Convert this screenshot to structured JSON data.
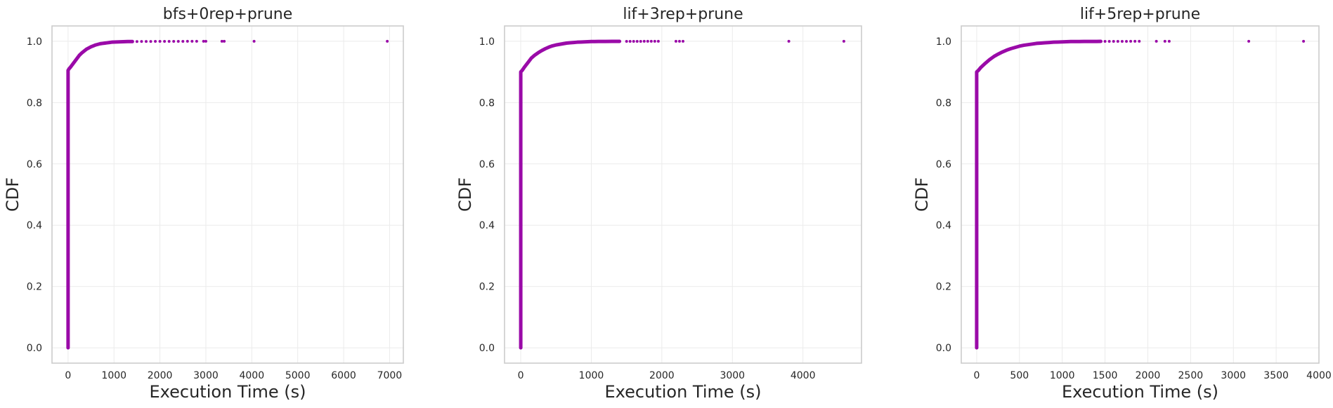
{
  "figure": {
    "accent_color": "#9a0aa8"
  },
  "chart_data": [
    {
      "type": "scatter",
      "title": "bfs+0rep+prune",
      "xlabel": "Execution Time (s)",
      "ylabel": "CDF",
      "xlim": [
        -350,
        7300
      ],
      "ylim": [
        -0.05,
        1.05
      ],
      "xticks": [
        0,
        1000,
        2000,
        3000,
        4000,
        5000,
        6000,
        7000
      ],
      "yticks": [
        0.0,
        0.2,
        0.4,
        0.6,
        0.8,
        1.0
      ],
      "grid": true,
      "series": [
        {
          "color": "#9a0aa8",
          "x": [
            0,
            0,
            0,
            0,
            0,
            0,
            0,
            0,
            0,
            0,
            0,
            0,
            0,
            0,
            0,
            0,
            0,
            0,
            0,
            0,
            0,
            20,
            50,
            100,
            150,
            200,
            250,
            300,
            350,
            400,
            450,
            500,
            550,
            600,
            650,
            700,
            750,
            800,
            850,
            900,
            950,
            1000,
            1100,
            1200,
            1300,
            1400,
            1500,
            1600,
            1700,
            1800,
            1900,
            2000,
            2100,
            2200,
            2300,
            2400,
            2500,
            2600,
            2700,
            2800,
            2950,
            3000,
            3350,
            3400,
            4050,
            6950
          ],
          "y": [
            0.0,
            0.05,
            0.1,
            0.15,
            0.2,
            0.25,
            0.3,
            0.35,
            0.4,
            0.45,
            0.5,
            0.55,
            0.6,
            0.65,
            0.7,
            0.75,
            0.8,
            0.85,
            0.88,
            0.9,
            0.905,
            0.91,
            0.915,
            0.925,
            0.935,
            0.945,
            0.955,
            0.962,
            0.968,
            0.974,
            0.978,
            0.982,
            0.985,
            0.988,
            0.99,
            0.992,
            0.993,
            0.994,
            0.995,
            0.996,
            0.997,
            0.9975,
            0.998,
            0.9985,
            0.999,
            0.999,
            0.999,
            0.9993,
            0.9994,
            0.9995,
            0.9996,
            0.9996,
            0.9997,
            0.9997,
            0.9998,
            0.9998,
            0.9998,
            0.9999,
            0.9999,
            0.9999,
            0.9999,
            0.9999,
            0.99995,
            0.99995,
            0.99998,
            1.0
          ]
        }
      ]
    },
    {
      "type": "scatter",
      "title": "lif+3rep+prune",
      "xlabel": "Execution Time (s)",
      "ylabel": "CDF",
      "xlim": [
        -230,
        4830
      ],
      "ylim": [
        -0.05,
        1.05
      ],
      "xticks": [
        0,
        1000,
        2000,
        3000,
        4000
      ],
      "yticks": [
        0.0,
        0.2,
        0.4,
        0.6,
        0.8,
        1.0
      ],
      "grid": true,
      "series": [
        {
          "color": "#9a0aa8",
          "x": [
            0,
            0,
            0,
            0,
            0,
            0,
            0,
            0,
            0,
            0,
            0,
            0,
            0,
            0,
            0,
            0,
            0,
            0,
            0,
            0,
            20,
            50,
            100,
            150,
            200,
            250,
            300,
            350,
            400,
            450,
            500,
            550,
            600,
            650,
            700,
            750,
            800,
            850,
            900,
            950,
            1000,
            1050,
            1100,
            1150,
            1200,
            1300,
            1400,
            1500,
            1550,
            1600,
            1650,
            1700,
            1750,
            1800,
            1850,
            1900,
            1950,
            2200,
            2250,
            2300,
            3800,
            4580
          ],
          "y": [
            0.0,
            0.05,
            0.1,
            0.15,
            0.2,
            0.25,
            0.3,
            0.35,
            0.4,
            0.45,
            0.5,
            0.55,
            0.6,
            0.65,
            0.7,
            0.75,
            0.8,
            0.85,
            0.88,
            0.9,
            0.905,
            0.915,
            0.93,
            0.945,
            0.955,
            0.963,
            0.97,
            0.976,
            0.981,
            0.985,
            0.988,
            0.99,
            0.992,
            0.994,
            0.995,
            0.996,
            0.997,
            0.9975,
            0.998,
            0.9985,
            0.999,
            0.999,
            0.9993,
            0.9994,
            0.9995,
            0.9996,
            0.9996,
            0.9997,
            0.9997,
            0.9998,
            0.9998,
            0.9998,
            0.9999,
            0.9999,
            0.9999,
            0.9999,
            0.9999,
            0.99995,
            0.99995,
            0.99996,
            0.99998,
            1.0
          ]
        }
      ]
    },
    {
      "type": "scatter",
      "title": "lif+5rep+prune",
      "xlabel": "Execution Time (s)",
      "ylabel": "CDF",
      "xlim": [
        -180,
        4000
      ],
      "ylim": [
        -0.05,
        1.05
      ],
      "xticks": [
        0,
        500,
        1000,
        1500,
        2000,
        2500,
        3000,
        3500,
        4000
      ],
      "yticks": [
        0.0,
        0.2,
        0.4,
        0.6,
        0.8,
        1.0
      ],
      "grid": true,
      "series": [
        {
          "color": "#9a0aa8",
          "x": [
            0,
            0,
            0,
            0,
            0,
            0,
            0,
            0,
            0,
            0,
            0,
            0,
            0,
            0,
            0,
            0,
            0,
            0,
            0,
            0,
            20,
            50,
            100,
            150,
            200,
            250,
            300,
            350,
            400,
            450,
            500,
            550,
            600,
            650,
            700,
            750,
            800,
            850,
            900,
            950,
            1000,
            1050,
            1100,
            1150,
            1200,
            1250,
            1300,
            1350,
            1400,
            1450,
            1500,
            1550,
            1600,
            1650,
            1700,
            1750,
            1800,
            1850,
            1900,
            2100,
            2200,
            2250,
            3180,
            3820
          ],
          "y": [
            0.0,
            0.05,
            0.1,
            0.15,
            0.2,
            0.25,
            0.3,
            0.35,
            0.4,
            0.45,
            0.5,
            0.55,
            0.6,
            0.65,
            0.7,
            0.75,
            0.8,
            0.85,
            0.88,
            0.9,
            0.905,
            0.915,
            0.928,
            0.94,
            0.95,
            0.958,
            0.965,
            0.971,
            0.976,
            0.98,
            0.984,
            0.987,
            0.989,
            0.991,
            0.993,
            0.994,
            0.995,
            0.996,
            0.997,
            0.9975,
            0.998,
            0.9985,
            0.999,
            0.999,
            0.9992,
            0.9993,
            0.9994,
            0.9995,
            0.9995,
            0.9996,
            0.9996,
            0.9997,
            0.9997,
            0.9998,
            0.9998,
            0.9998,
            0.9999,
            0.9999,
            0.9999,
            0.99995,
            0.99995,
            0.99996,
            0.99998,
            1.0
          ]
        }
      ]
    }
  ]
}
